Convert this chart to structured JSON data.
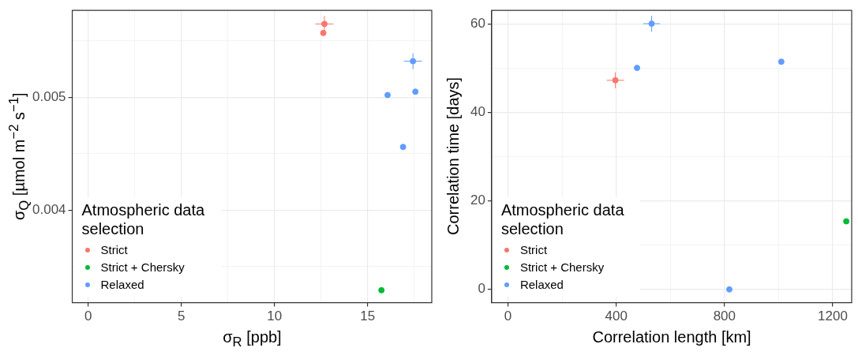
{
  "chart_data": [
    {
      "type": "scatter",
      "xlabel": "σ$_{R}$ [ppb]",
      "ylabel": "σ$_{Q}$ [µmol m$^{−2}$ s$^{−1}$]",
      "legend_title": "Atmospheric data selection",
      "legend": "bottom left",
      "grid": true,
      "marker": "circle",
      "xlim": [
        -0.85,
        18.44
      ],
      "ylim": [
        0.00318,
        0.00577
      ],
      "xticks": [
        0,
        {
          "value": 2.5,
          "label": null
        },
        5,
        {
          "value": 7.5,
          "label": null
        },
        10,
        {
          "value": 12.5,
          "label": null
        },
        15,
        {
          "value": 17.5,
          "label": null
        }
      ],
      "yticks": [
        {
          "value": 0.0035,
          "label": null
        },
        0.004,
        {
          "value": 0.0045,
          "label": null
        },
        0.005,
        {
          "value": 0.0055,
          "label": null
        }
      ],
      "series": [
        {
          "name": "Strict",
          "color": "#f8766d",
          "x": [
            12.68,
            12.62
          ],
          "values": [
            0.00565,
            0.00557
          ],
          "errors": [
            7e-05,
            null
          ],
          "xerrors": [
            0.48,
            null
          ]
        },
        {
          "name": "Strict + Chersky",
          "color": "#00ba38",
          "x": [
            15.74
          ],
          "values": [
            0.00329
          ]
        },
        {
          "name": "Relaxed",
          "color": "#619cff",
          "x": [
            17.43,
            16.07,
            17.56,
            16.9
          ],
          "values": [
            0.00532,
            0.00502,
            0.00505,
            0.00456
          ],
          "errors": [
            7e-05,
            null,
            null,
            null
          ],
          "xerrors": [
            0.48,
            null,
            null,
            null
          ]
        }
      ]
    },
    {
      "type": "scatter",
      "xlabel": "Correlation length [km]",
      "ylabel": "Correlation time [days]",
      "legend_title": "Atmospheric data selection",
      "legend": "bottom left",
      "grid": true,
      "marker": "circle",
      "xlim": [
        -60,
        1270
      ],
      "ylim": [
        -3,
        63.1
      ],
      "xticks": [
        0,
        {
          "value": 200,
          "label": null
        },
        400,
        {
          "value": 600,
          "label": null
        },
        800,
        {
          "value": 1000,
          "label": null
        },
        1200
      ],
      "yticks": [
        0,
        {
          "value": 10,
          "label": null
        },
        20,
        {
          "value": 30,
          "label": null
        },
        40,
        {
          "value": 50,
          "label": null
        },
        60
      ],
      "series": [
        {
          "name": "Strict",
          "color": "#f8766d",
          "x": [
            397
          ],
          "values": [
            47.3
          ],
          "errors": [
            1.8
          ],
          "xerrors": [
            32
          ]
        },
        {
          "name": "Strict + Chersky",
          "color": "#00ba38",
          "x": [
            1250
          ],
          "values": [
            15.4
          ]
        },
        {
          "name": "Relaxed",
          "color": "#619cff",
          "x": [
            531,
            477,
            1010,
            818
          ],
          "values": [
            60.1,
            50.1,
            51.5,
            0
          ],
          "errors": [
            1.8,
            null,
            null,
            null
          ],
          "xerrors": [
            31,
            null,
            null,
            null
          ]
        }
      ]
    }
  ]
}
